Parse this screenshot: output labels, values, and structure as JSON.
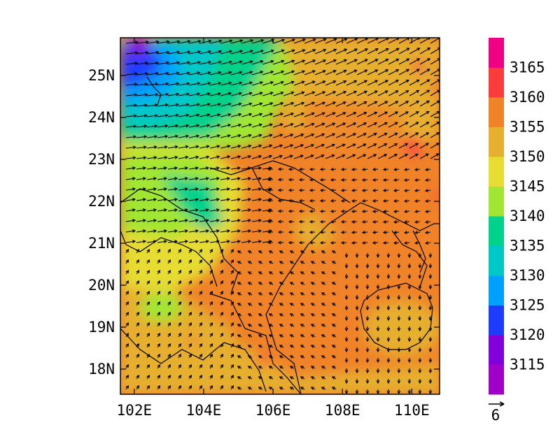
{
  "map": {
    "projection": "lon-lat",
    "lon_range": [
      101.6,
      110.8
    ],
    "lat_range": [
      17.4,
      25.9
    ],
    "x_ticks": [
      {
        "value": 102,
        "label": "102E"
      },
      {
        "value": 104,
        "label": "104E"
      },
      {
        "value": 106,
        "label": "106E"
      },
      {
        "value": 108,
        "label": "108E"
      },
      {
        "value": 110,
        "label": "110E"
      }
    ],
    "y_ticks": [
      {
        "value": 18,
        "label": "18N"
      },
      {
        "value": 19,
        "label": "19N"
      },
      {
        "value": 20,
        "label": "20N"
      },
      {
        "value": 21,
        "label": "21N"
      },
      {
        "value": 22,
        "label": "22N"
      },
      {
        "value": 23,
        "label": "23N"
      },
      {
        "value": 24,
        "label": "24N"
      },
      {
        "value": 25,
        "label": "25N"
      }
    ],
    "field_description": "filled contours of geopotential height with overlaid wind vectors",
    "dominant_fill": "orange (3150-3160) over east and south; green/blue lower values in northwest",
    "reference_vector": {
      "magnitude": "6"
    }
  },
  "colorbar": {
    "levels": [
      "3115",
      "3120",
      "3125",
      "3130",
      "3135",
      "3140",
      "3145",
      "3150",
      "3155",
      "3160",
      "3165"
    ],
    "colors": [
      "#a000c8",
      "#8200dc",
      "#1e3cff",
      "#00a0ff",
      "#00c8c8",
      "#00d28c",
      "#a0e632",
      "#e6dc32",
      "#e6af2d",
      "#f08228",
      "#fa3c3c",
      "#f00082"
    ]
  },
  "colors": {
    "frame": "#000000",
    "coast": "#000000",
    "vectors": "#000000"
  }
}
